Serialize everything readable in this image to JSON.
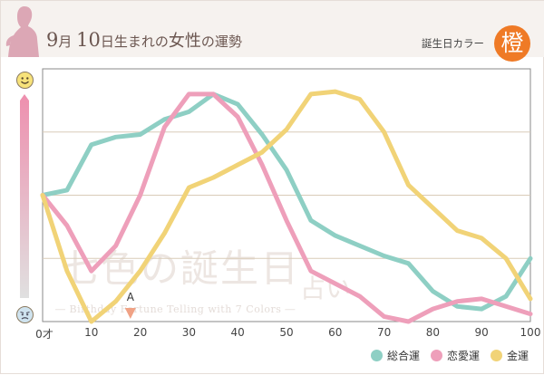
{
  "header": {
    "month": "9",
    "month_unit": "月",
    "day": "10",
    "day_unit": "日生まれの",
    "subject": "女性",
    "suffix": "の運勢",
    "birth_color_label": "誕生日カラー",
    "birth_color_glyph": "橙",
    "birth_color": "#ef7a26"
  },
  "watermark": {
    "main": "七色の誕生日",
    "sub": "占い",
    "line": "― Birthday Fortune Telling with 7 Colors ―"
  },
  "scale_icons": {
    "top": "smiling-face-icon",
    "bottom": "worried-face-icon"
  },
  "marker": {
    "label": "A",
    "x": 18
  },
  "chart_data": {
    "type": "line",
    "x_tick_labels": [
      "0才",
      "10",
      "20",
      "30",
      "40",
      "50",
      "60",
      "70",
      "80",
      "90",
      "100"
    ],
    "xlim": [
      0,
      100
    ],
    "ylim": [
      0,
      100
    ],
    "grid": true,
    "legend_position": "bottom-right",
    "series": [
      {
        "name": "総合運",
        "color": "#8ecfc4",
        "x": [
          0,
          5,
          10,
          15,
          20,
          25,
          30,
          35,
          40,
          45,
          50,
          55,
          60,
          65,
          70,
          75,
          80,
          85,
          90,
          95,
          100
        ],
        "y": [
          50,
          52,
          70,
          73,
          74,
          80,
          83,
          90,
          86,
          74,
          60,
          40,
          34,
          30,
          26,
          23,
          12,
          6,
          5,
          10,
          25
        ]
      },
      {
        "name": "恋愛運",
        "color": "#ee9fba",
        "x": [
          0,
          5,
          10,
          15,
          20,
          25,
          30,
          35,
          40,
          45,
          50,
          55,
          60,
          65,
          70,
          75,
          80,
          85,
          90,
          95,
          100
        ],
        "y": [
          50,
          38,
          20,
          30,
          50,
          77,
          90,
          90,
          81,
          62,
          40,
          20,
          15,
          10,
          2,
          0,
          5,
          8,
          9,
          6,
          3
        ]
      },
      {
        "name": "金運",
        "color": "#f1d377",
        "x": [
          0,
          5,
          10,
          15,
          20,
          25,
          30,
          35,
          40,
          45,
          50,
          55,
          60,
          65,
          70,
          75,
          80,
          85,
          90,
          95,
          100
        ],
        "y": [
          50,
          20,
          0,
          8,
          20,
          35,
          53,
          57,
          62,
          67,
          76,
          90,
          91,
          88,
          75,
          54,
          45,
          36,
          33,
          25,
          9
        ]
      }
    ]
  }
}
